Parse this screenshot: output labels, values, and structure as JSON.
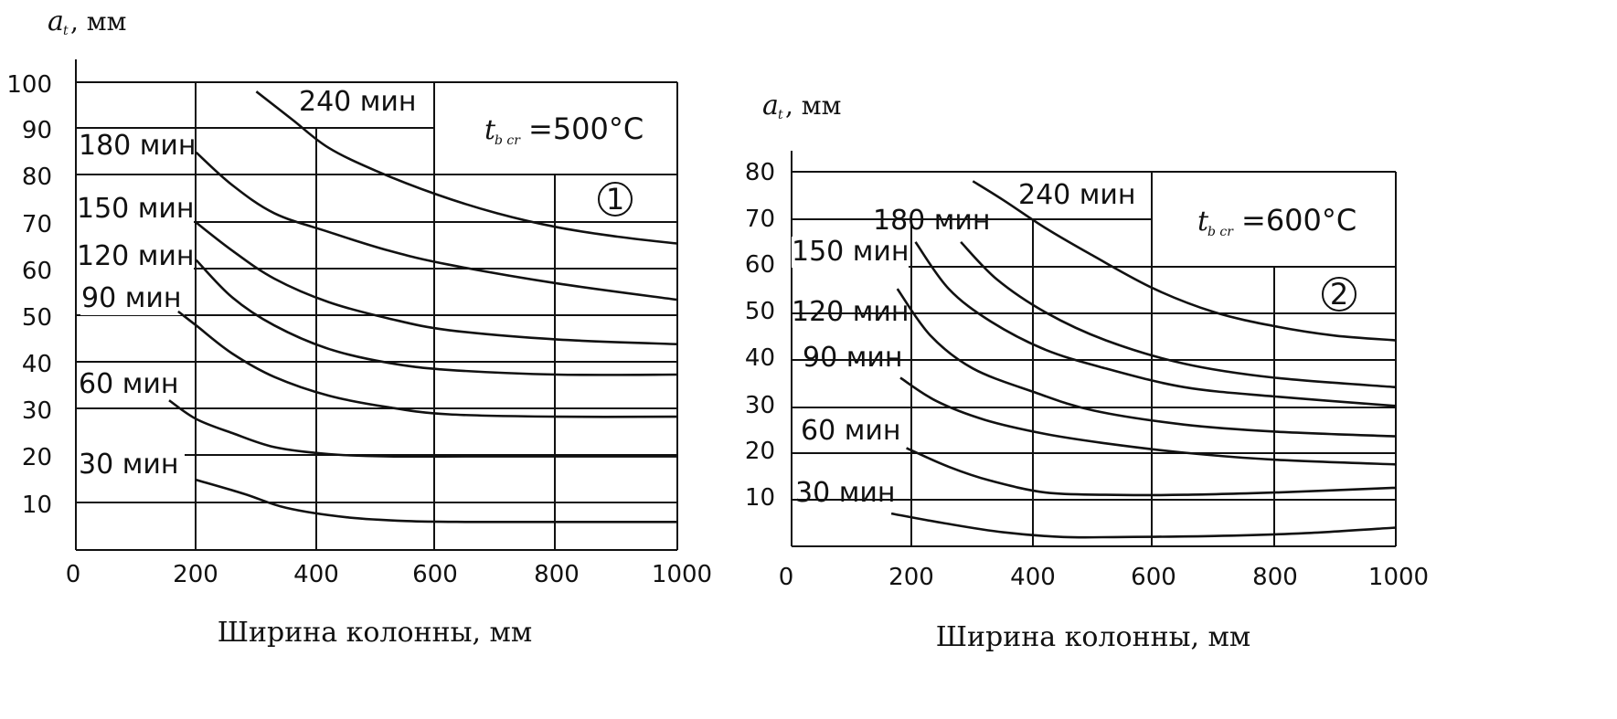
{
  "chart_data": [
    {
      "type": "line",
      "panel_number": "1",
      "y_unit_symbol": "a",
      "y_unit_subscript": "t",
      "ylabel_unit": ",  мм",
      "xlabel": "Ширина колонны,  мм",
      "temperature": {
        "symbol": "t",
        "subscript": "b cr",
        "value": "=500°C"
      },
      "xlim": [
        0,
        1000
      ],
      "ylim": [
        0,
        100
      ],
      "xticks": [
        "0",
        "200",
        "400",
        "600",
        "800",
        "1000"
      ],
      "yticks": [
        "10",
        "20",
        "30",
        "40",
        "50",
        "60",
        "70",
        "80",
        "90",
        "100"
      ],
      "series": [
        {
          "name": "30 мин",
          "x": [
            200,
            280,
            350,
            450,
            550,
            650,
            800,
            1000
          ],
          "y": [
            15,
            12,
            9,
            7,
            6.2,
            6,
            6,
            6
          ]
        },
        {
          "name": "60 мин",
          "x": [
            155,
            200,
            260,
            330,
            420,
            520,
            650,
            800,
            1000
          ],
          "y": [
            32,
            28,
            25,
            22,
            20.5,
            20,
            20,
            20,
            20
          ]
        },
        {
          "name": "90 мин",
          "x": [
            170,
            200,
            260,
            330,
            420,
            520,
            620,
            800,
            1000
          ],
          "y": [
            51,
            48,
            42,
            37,
            33,
            30.5,
            29,
            28.5,
            28.5
          ]
        },
        {
          "name": "120 мин",
          "x": [
            200,
            260,
            330,
            420,
            520,
            620,
            800,
            1000
          ],
          "y": [
            62,
            54,
            48,
            43,
            40,
            38.5,
            37.5,
            37.5
          ]
        },
        {
          "name": "150 мин",
          "x": [
            200,
            260,
            330,
            420,
            520,
            620,
            800,
            1000
          ],
          "y": [
            70,
            64,
            58,
            53,
            49.5,
            47,
            45,
            44
          ]
        },
        {
          "name": "180 мин",
          "x": [
            200,
            260,
            330,
            420,
            520,
            620,
            800,
            1000
          ],
          "y": [
            85,
            78,
            72,
            68,
            64,
            61,
            57,
            53.5
          ]
        },
        {
          "name": "240 мин",
          "x": [
            300,
            360,
            420,
            500,
            600,
            700,
            800,
            900,
            1000
          ],
          "y": [
            98,
            92,
            86,
            81,
            76,
            72,
            69,
            67,
            65.5
          ]
        }
      ]
    },
    {
      "type": "line",
      "panel_number": "2",
      "y_unit_symbol": "a",
      "y_unit_subscript": "t",
      "ylabel_unit": ",  мм",
      "xlabel": "Ширина колонны,  мм",
      "temperature": {
        "symbol": "t",
        "subscript": "b cr",
        "value": "=600°C"
      },
      "xlim": [
        0,
        1000
      ],
      "ylim": [
        0,
        80
      ],
      "xticks": [
        "0",
        "200",
        "400",
        "600",
        "800",
        "1000"
      ],
      "yticks": [
        "10",
        "20",
        "30",
        "40",
        "50",
        "60",
        "70",
        "80"
      ],
      "series": [
        {
          "name": "30 мин",
          "x": [
            165,
            250,
            350,
            450,
            550,
            700,
            850,
            1000
          ],
          "y": [
            7,
            5,
            3,
            2,
            2,
            2.2,
            2.8,
            4
          ]
        },
        {
          "name": "60 мин",
          "x": [
            190,
            260,
            330,
            420,
            520,
            650,
            800,
            1000
          ],
          "y": [
            21,
            17,
            14,
            11.5,
            11,
            11,
            11.5,
            12.5
          ]
        },
        {
          "name": "90 мин",
          "x": [
            180,
            240,
            320,
            420,
            520,
            650,
            800,
            1000
          ],
          "y": [
            36,
            31,
            27,
            24,
            22,
            20,
            18.5,
            17.5
          ]
        },
        {
          "name": "120 мин",
          "x": [
            175,
            230,
            300,
            400,
            500,
            650,
            800,
            1000
          ],
          "y": [
            55,
            45,
            38,
            33,
            29,
            26,
            24.5,
            23.5
          ]
        },
        {
          "name": "150 мин",
          "x": [
            205,
            260,
            330,
            420,
            520,
            650,
            800,
            1000
          ],
          "y": [
            65,
            55,
            48,
            42,
            38,
            34,
            32,
            30
          ]
        },
        {
          "name": "180 мин",
          "x": [
            280,
            340,
            420,
            520,
            650,
            800,
            1000
          ],
          "y": [
            65,
            57,
            50,
            44,
            39,
            36,
            34
          ]
        },
        {
          "name": "240 мин",
          "x": [
            300,
            350,
            420,
            500,
            600,
            700,
            800,
            900,
            1000
          ],
          "y": [
            78,
            74,
            68,
            62,
            55,
            50,
            47,
            45,
            44
          ]
        }
      ]
    }
  ]
}
